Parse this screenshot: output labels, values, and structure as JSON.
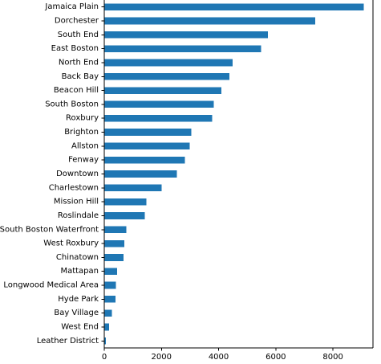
{
  "chart_data": {
    "type": "bar",
    "orientation": "horizontal",
    "title": "",
    "xlabel": "",
    "ylabel": "",
    "categories": [
      "Jamaica Plain",
      "Dorchester",
      "South End",
      "East Boston",
      "North End",
      "Back Bay",
      "Beacon Hill",
      "South Boston",
      "Roxbury",
      "Brighton",
      "Allston",
      "Fenway",
      "Downtown",
      "Charlestown",
      "Mission Hill",
      "Roslindale",
      "South Boston Waterfront",
      "West Roxbury",
      "Chinatown",
      "Mattapan",
      "Longwood Medical Area",
      "Hyde Park",
      "Bay Village",
      "West End",
      "Leather District"
    ],
    "values": [
      9080,
      7380,
      5720,
      5480,
      4490,
      4380,
      4100,
      3830,
      3780,
      3050,
      2990,
      2820,
      2540,
      2010,
      1470,
      1420,
      770,
      700,
      680,
      450,
      410,
      390,
      260,
      170,
      50
    ],
    "xlim": [
      0,
      9400
    ],
    "xticks": [
      0,
      2000,
      4000,
      6000,
      8000
    ],
    "xtick_labels": [
      "0",
      "2000",
      "4000",
      "6000",
      "8000"
    ],
    "bar_color": "#1f77b4",
    "grid": false,
    "legend": "none"
  }
}
